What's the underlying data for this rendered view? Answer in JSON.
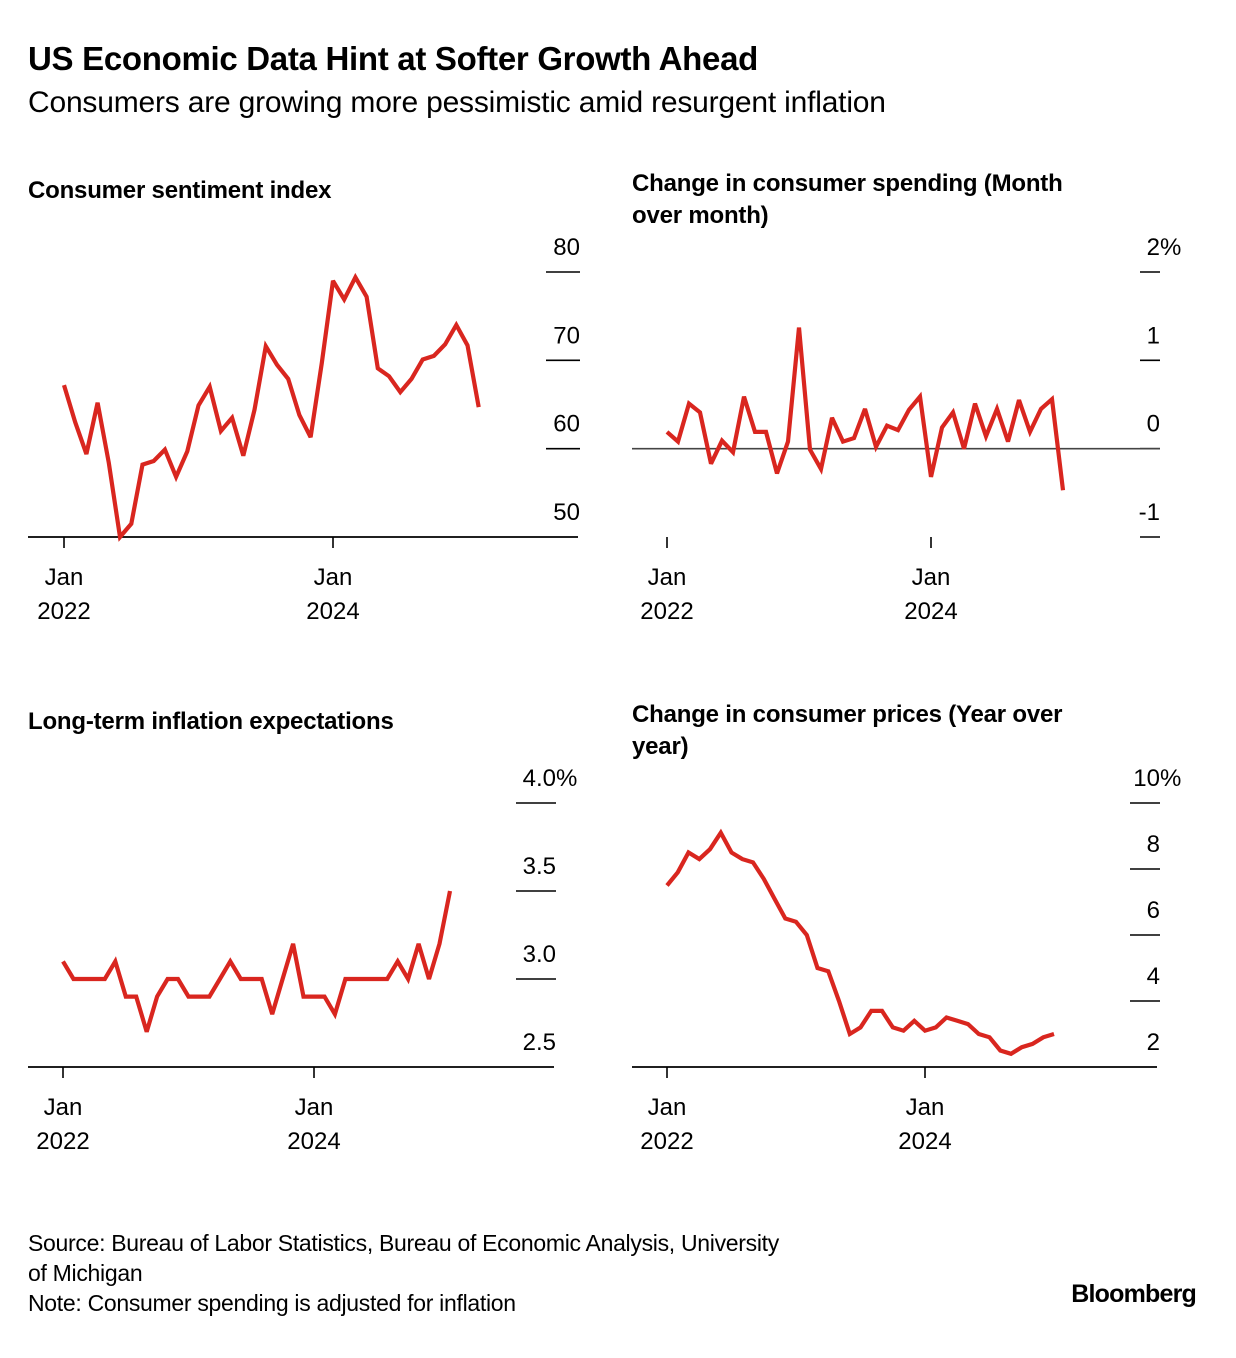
{
  "header": {
    "title": "US Economic Data Hint at Softer Growth Ahead",
    "subtitle": "Consumers are growing more pessimistic amid resurgent inflation"
  },
  "footer": {
    "source_line1": "Source: Bureau of Labor Statistics, Bureau of Economic Analysis, University",
    "source_line2": "of Michigan",
    "note": "Note: Consumer spending is adjusted for inflation",
    "brand": "Bloomberg"
  },
  "colors": {
    "line": "#d9261f",
    "axis": "#000000",
    "zero_line": "#444444"
  },
  "chart_data": [
    {
      "id": "sentiment",
      "type": "line",
      "title": "Consumer sentiment index",
      "title_lines": [
        "Consumer sentiment index"
      ],
      "xlabel": "",
      "ylabel": "",
      "x_start": "2022-01",
      "x_frequency": "monthly",
      "x_ticks": [
        {
          "month_index": 0,
          "line1": "Jan",
          "line2": "2022"
        },
        {
          "month_index": 24,
          "line1": "Jan",
          "line2": "2024"
        }
      ],
      "y_ticks": [
        {
          "value": 80,
          "label": "80"
        },
        {
          "value": 70,
          "label": "70"
        },
        {
          "value": 60,
          "label": "60"
        },
        {
          "value": 50,
          "label": "50"
        }
      ],
      "ylim": [
        50,
        80
      ],
      "baseline": "bottom-axis",
      "grid": false,
      "legend": "none",
      "values": [
        67.2,
        63.0,
        59.4,
        65.2,
        58.4,
        50.0,
        51.5,
        58.2,
        58.6,
        59.9,
        56.8,
        59.7,
        64.9,
        67.0,
        62.0,
        63.5,
        59.2,
        64.4,
        71.6,
        69.5,
        67.9,
        63.8,
        61.3,
        69.7,
        79.0,
        76.9,
        79.4,
        77.2,
        69.1,
        68.2,
        66.4,
        67.9,
        70.1,
        70.5,
        71.8,
        74.0,
        71.7,
        64.7
      ]
    },
    {
      "id": "spending",
      "type": "line",
      "title": "Change in consumer spending (Month over month)",
      "title_lines": [
        "Change in consumer spending (Month",
        "over month)"
      ],
      "xlabel": "",
      "ylabel": "",
      "x_start": "2022-01",
      "x_frequency": "monthly",
      "x_ticks": [
        {
          "month_index": 0,
          "line1": "Jan",
          "line2": "2022"
        },
        {
          "month_index": 24,
          "line1": "Jan",
          "line2": "2024"
        }
      ],
      "y_ticks": [
        {
          "value": 2,
          "label": "2",
          "suffix": "%"
        },
        {
          "value": 1,
          "label": "1"
        },
        {
          "value": 0,
          "label": "0"
        },
        {
          "value": -1,
          "label": "-1"
        }
      ],
      "ylim": [
        -1,
        2
      ],
      "baseline": "zero-line",
      "grid": false,
      "legend": "none",
      "values": [
        0.19,
        0.08,
        0.51,
        0.41,
        -0.17,
        0.09,
        -0.04,
        0.59,
        0.19,
        0.19,
        -0.28,
        0.08,
        1.37,
        -0.01,
        -0.23,
        0.35,
        0.08,
        0.12,
        0.45,
        0.02,
        0.26,
        0.21,
        0.44,
        0.59,
        -0.32,
        0.24,
        0.41,
        0.0,
        0.51,
        0.14,
        0.45,
        0.08,
        0.55,
        0.19,
        0.45,
        0.56,
        -0.47
      ]
    },
    {
      "id": "inflation_expectations",
      "type": "line",
      "title": "Long-term inflation expectations",
      "title_lines": [
        "Long-term inflation expectations"
      ],
      "xlabel": "",
      "ylabel": "",
      "x_start": "2022-01",
      "x_frequency": "monthly",
      "x_ticks": [
        {
          "month_index": 0,
          "line1": "Jan",
          "line2": "2022"
        },
        {
          "month_index": 24,
          "line1": "Jan",
          "line2": "2024"
        }
      ],
      "y_ticks": [
        {
          "value": 4.0,
          "label": "4.0",
          "suffix": "%"
        },
        {
          "value": 3.5,
          "label": "3.5"
        },
        {
          "value": 3.0,
          "label": "3.0"
        },
        {
          "value": 2.5,
          "label": "2.5"
        }
      ],
      "ylim": [
        2.5,
        4.0
      ],
      "baseline": "bottom-axis",
      "grid": false,
      "legend": "none",
      "values": [
        3.1,
        3.0,
        3.0,
        3.0,
        3.0,
        3.1,
        2.9,
        2.9,
        2.7,
        2.9,
        3.0,
        3.0,
        2.9,
        2.9,
        2.9,
        3.0,
        3.1,
        3.0,
        3.0,
        3.0,
        2.8,
        3.0,
        3.2,
        2.9,
        2.9,
        2.9,
        2.8,
        3.0,
        3.0,
        3.0,
        3.0,
        3.0,
        3.1,
        3.0,
        3.2,
        3.0,
        3.2,
        3.5
      ]
    },
    {
      "id": "cpi",
      "type": "line",
      "title": "Change in consumer prices (Year over year)",
      "title_lines": [
        "Change in consumer prices (Year over",
        "year)"
      ],
      "xlabel": "",
      "ylabel": "",
      "x_start": "2022-01",
      "x_frequency": "monthly",
      "x_ticks": [
        {
          "month_index": 0,
          "line1": "Jan",
          "line2": "2022"
        },
        {
          "month_index": 24,
          "line1": "Jan",
          "line2": "2024"
        }
      ],
      "y_ticks": [
        {
          "value": 10,
          "label": "10",
          "suffix": "%"
        },
        {
          "value": 8,
          "label": "8"
        },
        {
          "value": 6,
          "label": "6"
        },
        {
          "value": 4,
          "label": "4"
        },
        {
          "value": 2,
          "label": "2"
        }
      ],
      "ylim": [
        2,
        10
      ],
      "baseline": "bottom-axis",
      "grid": false,
      "legend": "none",
      "values": [
        7.5,
        7.9,
        8.5,
        8.3,
        8.6,
        9.1,
        8.5,
        8.3,
        8.2,
        7.7,
        7.1,
        6.5,
        6.4,
        6.0,
        5.0,
        4.9,
        4.0,
        3.0,
        3.2,
        3.7,
        3.7,
        3.2,
        3.1,
        3.4,
        3.1,
        3.2,
        3.5,
        3.4,
        3.3,
        3.0,
        2.9,
        2.5,
        2.4,
        2.6,
        2.7,
        2.9,
        3.0
      ]
    }
  ]
}
